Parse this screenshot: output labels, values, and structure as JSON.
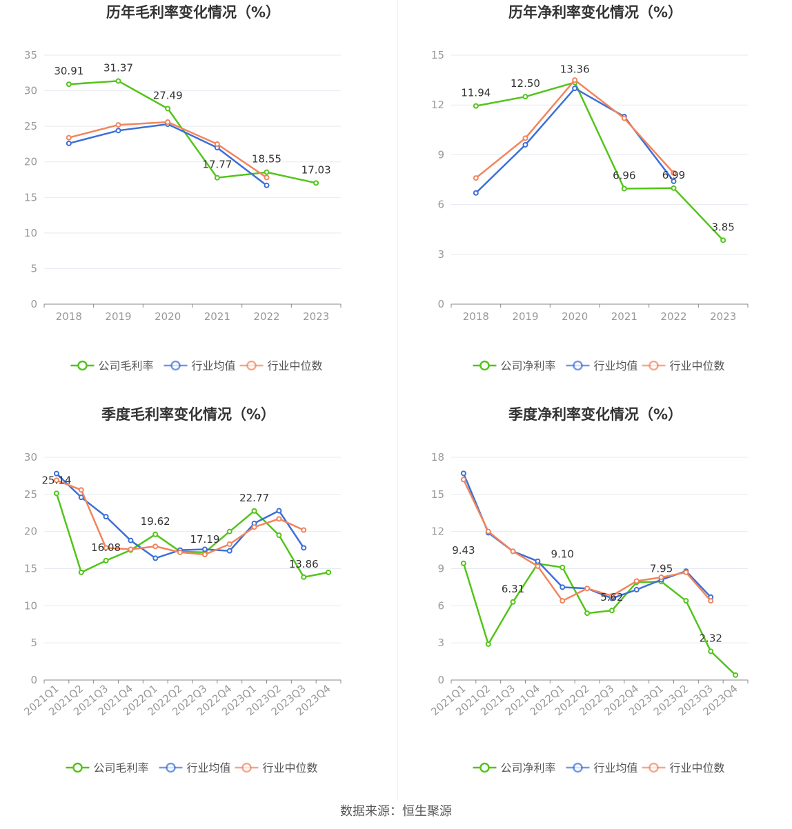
{
  "footer": {
    "source": "数据来源：恒生聚源"
  },
  "colors": {
    "company": "#52c41a",
    "avg": "#3b6fd8",
    "median": "#f2845c"
  },
  "legend": [
    "公司毛利率",
    "行业均值",
    "行业中位数"
  ],
  "chart_data": [
    {
      "type": "line",
      "title": "历年毛利率变化情况（%）",
      "x": [
        "2018",
        "2019",
        "2020",
        "2021",
        "2022",
        "2023"
      ],
      "ylim": [
        0,
        35
      ],
      "yticks": [
        0,
        5,
        10,
        15,
        20,
        25,
        30,
        35
      ],
      "legend": [
        "公司毛利率",
        "行业均值",
        "行业中位数"
      ],
      "labels": [
        "30.91",
        "31.37",
        "27.49",
        "17.77",
        "18.55",
        "17.03"
      ],
      "series": [
        {
          "name": "公司毛利率",
          "values": [
            30.91,
            31.37,
            27.49,
            17.77,
            18.55,
            17.03
          ]
        },
        {
          "name": "行业均值",
          "values": [
            22.6,
            24.4,
            25.3,
            22.0,
            16.7,
            null
          ]
        },
        {
          "name": "行业中位数",
          "values": [
            23.4,
            25.2,
            25.6,
            22.5,
            17.8,
            null
          ]
        }
      ]
    },
    {
      "type": "line",
      "title": "历年净利率变化情况（%）",
      "x": [
        "2018",
        "2019",
        "2020",
        "2021",
        "2022",
        "2023"
      ],
      "ylim": [
        0,
        15
      ],
      "yticks": [
        0,
        3,
        6,
        9,
        12,
        15
      ],
      "legend": [
        "公司净利率",
        "行业均值",
        "行业中位数"
      ],
      "labels": [
        "11.94",
        "12.50",
        "13.36",
        "6.96",
        "6.99",
        "3.85"
      ],
      "series": [
        {
          "name": "公司净利率",
          "values": [
            11.94,
            12.5,
            13.36,
            6.96,
            6.99,
            3.85
          ]
        },
        {
          "name": "行业均值",
          "values": [
            6.7,
            9.6,
            13.0,
            11.3,
            7.4,
            null
          ]
        },
        {
          "name": "行业中位数",
          "values": [
            7.6,
            10.0,
            13.5,
            11.2,
            7.9,
            null
          ]
        }
      ]
    },
    {
      "type": "line",
      "title": "季度毛利率变化情况（%）",
      "x": [
        "2021Q1",
        "2021Q2",
        "2021Q3",
        "2021Q4",
        "2022Q1",
        "2022Q2",
        "2022Q3",
        "2022Q4",
        "2023Q1",
        "2023Q2",
        "2023Q3",
        "2023Q4"
      ],
      "ylim": [
        0,
        30
      ],
      "yticks": [
        0,
        5,
        10,
        15,
        20,
        25,
        30
      ],
      "legend": [
        "公司毛利率",
        "行业均值",
        "行业中位数"
      ],
      "labels": [
        "25.14",
        "",
        "16.08",
        "",
        "19.62",
        "",
        "17.19",
        "",
        "22.77",
        "",
        "13.86",
        ""
      ],
      "series": [
        {
          "name": "公司毛利率",
          "values": [
            25.14,
            14.5,
            16.08,
            17.5,
            19.62,
            17.3,
            17.19,
            20.0,
            22.77,
            19.5,
            13.86,
            14.5
          ]
        },
        {
          "name": "行业均值",
          "values": [
            27.8,
            24.6,
            22.0,
            18.8,
            16.4,
            17.5,
            17.6,
            17.4,
            21.1,
            22.8,
            17.8,
            null
          ]
        },
        {
          "name": "行业中位数",
          "values": [
            26.9,
            25.6,
            17.8,
            17.6,
            18.0,
            17.2,
            16.9,
            18.3,
            20.6,
            21.7,
            20.2,
            null
          ]
        }
      ]
    },
    {
      "type": "line",
      "title": "季度净利率变化情况（%）",
      "x": [
        "2021Q1",
        "2021Q2",
        "2021Q3",
        "2021Q4",
        "2022Q1",
        "2022Q2",
        "2022Q3",
        "2022Q4",
        "2023Q1",
        "2023Q2",
        "2023Q3",
        "2023Q4"
      ],
      "ylim": [
        0,
        18
      ],
      "yticks": [
        0,
        3,
        6,
        9,
        12,
        15,
        18
      ],
      "legend": [
        "公司净利率",
        "行业均值",
        "行业中位数"
      ],
      "labels": [
        "9.43",
        "",
        "6.31",
        "",
        "9.10",
        "",
        "5.62",
        "",
        "7.95",
        "",
        "2.32",
        ""
      ],
      "series": [
        {
          "name": "公司净利率",
          "values": [
            9.43,
            2.9,
            6.31,
            9.4,
            9.1,
            5.4,
            5.62,
            7.9,
            7.95,
            6.4,
            2.32,
            0.4
          ]
        },
        {
          "name": "行业均值",
          "values": [
            16.7,
            11.9,
            10.4,
            9.6,
            7.5,
            7.4,
            6.6,
            7.3,
            8.1,
            8.8,
            6.7,
            null
          ]
        },
        {
          "name": "行业中位数",
          "values": [
            16.2,
            12.0,
            10.4,
            9.2,
            6.4,
            7.4,
            6.8,
            8.0,
            8.3,
            8.7,
            6.4,
            null
          ]
        }
      ]
    }
  ]
}
